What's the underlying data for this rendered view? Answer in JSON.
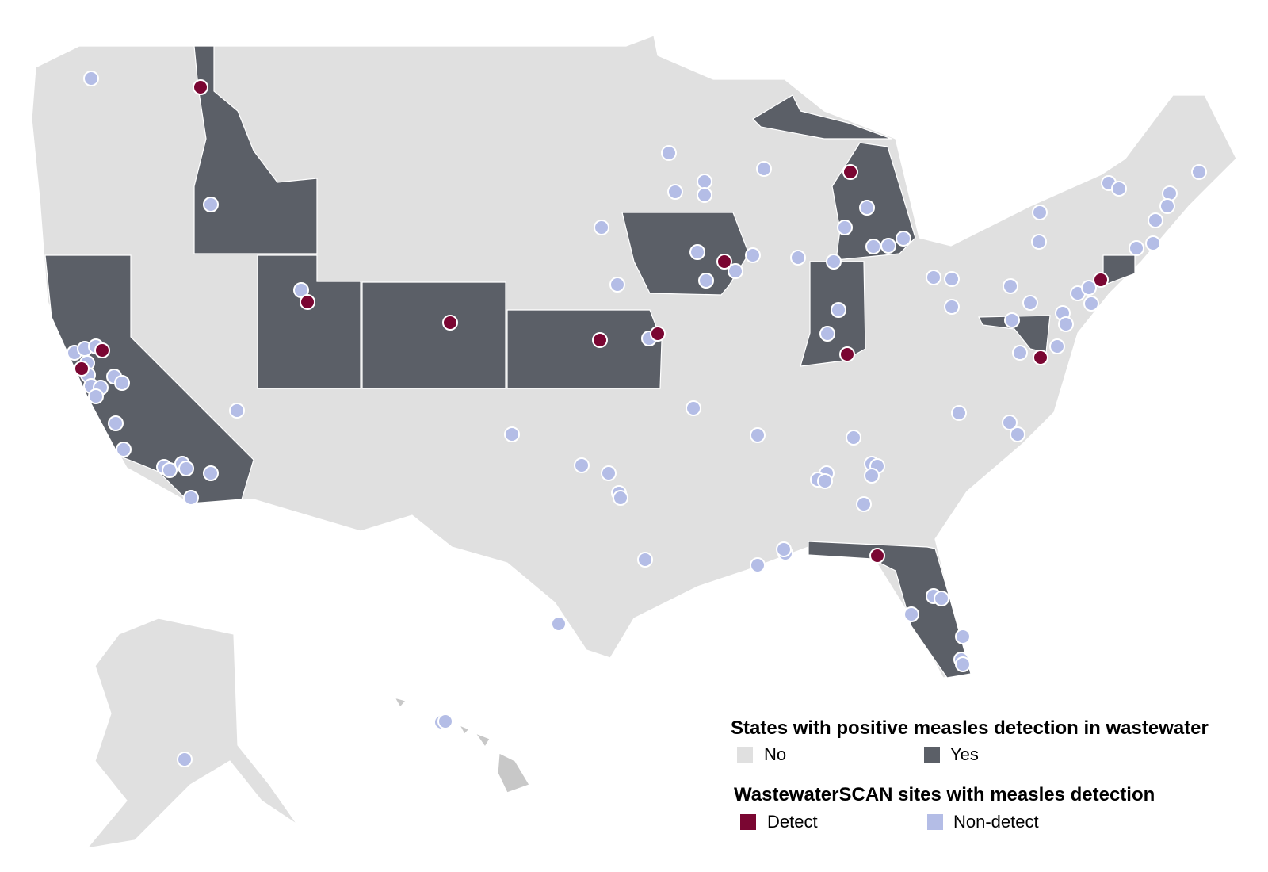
{
  "legend_states": {
    "title": "States with positive measles detection in wastewater",
    "items": [
      {
        "label": "No",
        "color": "#e0e0e0"
      },
      {
        "label": "Yes",
        "color": "#5b5f67"
      }
    ]
  },
  "legend_sites": {
    "title": "WastewaterSCAN sites with measles detection",
    "items": [
      {
        "label": "Detect",
        "color": "#7a0632"
      },
      {
        "label": "Non-detect",
        "color": "#b4bde6"
      }
    ]
  }
}
